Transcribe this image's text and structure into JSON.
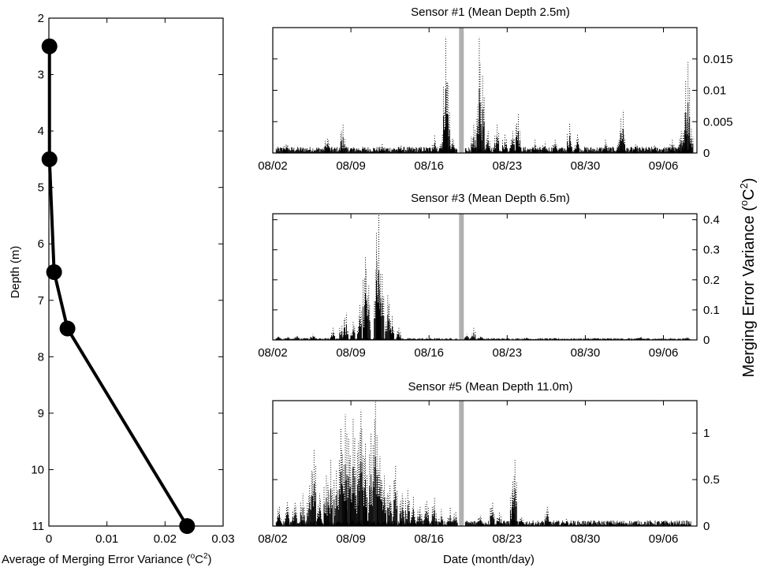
{
  "chart_data": [
    {
      "type": "line",
      "ylabel": "Depth (m)",
      "xlabel": "Average of Merging Error Variance (°C²)",
      "xlabel_parts": {
        "text": "Average of Merging Error Variance (",
        "sup_base": "o",
        "unit": "C",
        "sup_power": "2",
        "close": ")"
      },
      "xlim": [
        0,
        0.03
      ],
      "ylim": [
        2,
        11
      ],
      "y_reversed": true,
      "xticks": [
        0,
        0.01,
        0.02,
        0.03
      ],
      "xtick_labels": [
        "0",
        "0.01",
        "0.02",
        "0.03"
      ],
      "yticks": [
        2,
        3,
        4,
        5,
        6,
        7,
        8,
        9,
        10,
        11
      ],
      "ytick_labels": [
        "2",
        "3",
        "4",
        "5",
        "6",
        "7",
        "8",
        "9",
        "10",
        "11"
      ],
      "points": [
        {
          "x": 0.0001,
          "y": 2.5
        },
        {
          "x": 0.0001,
          "y": 4.5
        },
        {
          "x": 0.0009,
          "y": 6.5
        },
        {
          "x": 0.0032,
          "y": 7.5
        },
        {
          "x": 0.0238,
          "y": 11.0
        }
      ],
      "grid": false
    },
    {
      "type": "scatter",
      "title": "Sensor #1 (Mean Depth 2.5m)",
      "ylim": [
        0,
        0.02
      ],
      "yticks": [
        0,
        0.005,
        0.01,
        0.015
      ],
      "ytick_labels": [
        "0",
        "0.005",
        "0.01",
        "0.015"
      ],
      "xlim_days": [
        0,
        38
      ],
      "xticks_days": [
        0,
        7,
        14,
        21,
        28,
        35
      ],
      "xtick_labels": [
        "08/02",
        "08/09",
        "08/16",
        "08/23",
        "08/30",
        "09/06"
      ],
      "gap_day": 16.9,
      "baseline_ymax": 0.001,
      "spikes": [
        [
          1.2,
          0.0015
        ],
        [
          4.9,
          0.0025
        ],
        [
          6.3,
          0.0045
        ],
        [
          9.8,
          0.0016
        ],
        [
          11.5,
          0.0012
        ],
        [
          14.5,
          0.0028
        ],
        [
          15.2,
          0.003
        ],
        [
          15.5,
          0.0185
        ],
        [
          15.7,
          0.011
        ],
        [
          16.1,
          0.0025
        ],
        [
          18.0,
          0.0045
        ],
        [
          18.5,
          0.0185
        ],
        [
          18.8,
          0.0125
        ],
        [
          19.3,
          0.0035
        ],
        [
          20.1,
          0.0045
        ],
        [
          20.8,
          0.003
        ],
        [
          21.5,
          0.0035
        ],
        [
          22.0,
          0.0062
        ],
        [
          23.5,
          0.0022
        ],
        [
          24.4,
          0.0018
        ],
        [
          25.3,
          0.0022
        ],
        [
          26.6,
          0.0048
        ],
        [
          27.3,
          0.003
        ],
        [
          29.8,
          0.0022
        ],
        [
          31.1,
          0.0035
        ],
        [
          31.4,
          0.0068
        ],
        [
          32.5,
          0.0015
        ],
        [
          34.2,
          0.0012
        ],
        [
          35.8,
          0.0022
        ],
        [
          36.6,
          0.0035
        ],
        [
          36.9,
          0.0065
        ],
        [
          37.2,
          0.0145
        ],
        [
          37.5,
          0.004
        ]
      ],
      "grid": false
    },
    {
      "type": "scatter",
      "title": "Sensor #3 (Mean Depth 6.5m)",
      "ylim": [
        0,
        0.42
      ],
      "yticks": [
        0,
        0.1,
        0.2,
        0.3,
        0.4
      ],
      "ytick_labels": [
        "0",
        "0.1",
        "0.2",
        "0.3",
        "0.4"
      ],
      "xlim_days": [
        0,
        38
      ],
      "xticks_days": [
        0,
        7,
        14,
        21,
        28,
        35
      ],
      "xtick_labels": [
        "08/02",
        "08/09",
        "08/16",
        "08/23",
        "08/30",
        "09/06"
      ],
      "gap_day": 16.9,
      "baseline_ymax": 0.006,
      "spikes": [
        [
          0.5,
          0.015
        ],
        [
          1.4,
          0.012
        ],
        [
          2.2,
          0.018
        ],
        [
          3.6,
          0.02
        ],
        [
          5.4,
          0.04
        ],
        [
          6.2,
          0.05
        ],
        [
          6.6,
          0.09
        ],
        [
          7.2,
          0.06
        ],
        [
          7.8,
          0.12
        ],
        [
          8.3,
          0.28
        ],
        [
          8.6,
          0.18
        ],
        [
          9.3,
          0.3
        ],
        [
          9.5,
          0.42
        ],
        [
          9.8,
          0.22
        ],
        [
          10.3,
          0.15
        ],
        [
          10.7,
          0.08
        ],
        [
          11.3,
          0.04
        ],
        [
          17.4,
          0.02
        ],
        [
          18.0,
          0.04
        ],
        [
          18.6,
          0.015
        ],
        [
          22.7,
          0.008
        ],
        [
          28.9,
          0.006
        ],
        [
          33.0,
          0.012
        ],
        [
          37.2,
          0.01
        ]
      ],
      "grid": false
    },
    {
      "type": "scatter",
      "title": "Sensor #5 (Mean Depth 11.0m)",
      "ylim": [
        0,
        1.35
      ],
      "yticks": [
        0,
        0.5,
        1
      ],
      "ytick_labels": [
        "0",
        "0.5",
        "1"
      ],
      "xlim_days": [
        0,
        38
      ],
      "xticks_days": [
        0,
        7,
        14,
        21,
        28,
        35
      ],
      "xtick_labels": [
        "08/02",
        "08/09",
        "08/16",
        "08/23",
        "08/30",
        "09/06"
      ],
      "gap_day": 16.9,
      "baseline_ymax": 0.06,
      "spikes": [
        [
          0.6,
          0.22
        ],
        [
          1.3,
          0.26
        ],
        [
          2.0,
          0.25
        ],
        [
          2.7,
          0.35
        ],
        [
          3.3,
          0.45
        ],
        [
          3.7,
          0.82
        ],
        [
          4.2,
          0.35
        ],
        [
          4.8,
          0.55
        ],
        [
          5.2,
          0.72
        ],
        [
          5.7,
          0.6
        ],
        [
          6.1,
          1.05
        ],
        [
          6.5,
          1.2
        ],
        [
          6.8,
          0.95
        ],
        [
          7.2,
          1.15
        ],
        [
          7.6,
          0.8
        ],
        [
          7.9,
          1.25
        ],
        [
          8.3,
          0.9
        ],
        [
          8.8,
          1.0
        ],
        [
          9.2,
          1.35
        ],
        [
          9.6,
          0.75
        ],
        [
          10.0,
          0.55
        ],
        [
          10.5,
          0.45
        ],
        [
          11.0,
          0.65
        ],
        [
          11.6,
          0.35
        ],
        [
          12.1,
          0.4
        ],
        [
          12.6,
          0.32
        ],
        [
          13.2,
          0.22
        ],
        [
          13.8,
          0.28
        ],
        [
          14.5,
          0.3
        ],
        [
          15.1,
          0.18
        ],
        [
          15.9,
          0.2
        ],
        [
          16.4,
          0.16
        ],
        [
          18.6,
          0.12
        ],
        [
          19.7,
          0.25
        ],
        [
          20.3,
          0.15
        ],
        [
          21.5,
          0.48
        ],
        [
          21.7,
          0.72
        ],
        [
          22.3,
          0.1
        ],
        [
          24.6,
          0.22
        ],
        [
          26.3,
          0.08
        ],
        [
          28.4,
          0.05
        ],
        [
          30.3,
          0.06
        ],
        [
          32.8,
          0.03
        ],
        [
          36.9,
          0.03
        ]
      ],
      "grid": false
    }
  ],
  "shared": {
    "xlabel": "Date (month/day)",
    "ylabel": "Merging Error Variance (°C²)",
    "ylabel_parts": {
      "text": "Merging Error Variance (",
      "sup_base": "o",
      "unit": "C",
      "sup_power": "2",
      "close": ")"
    }
  }
}
